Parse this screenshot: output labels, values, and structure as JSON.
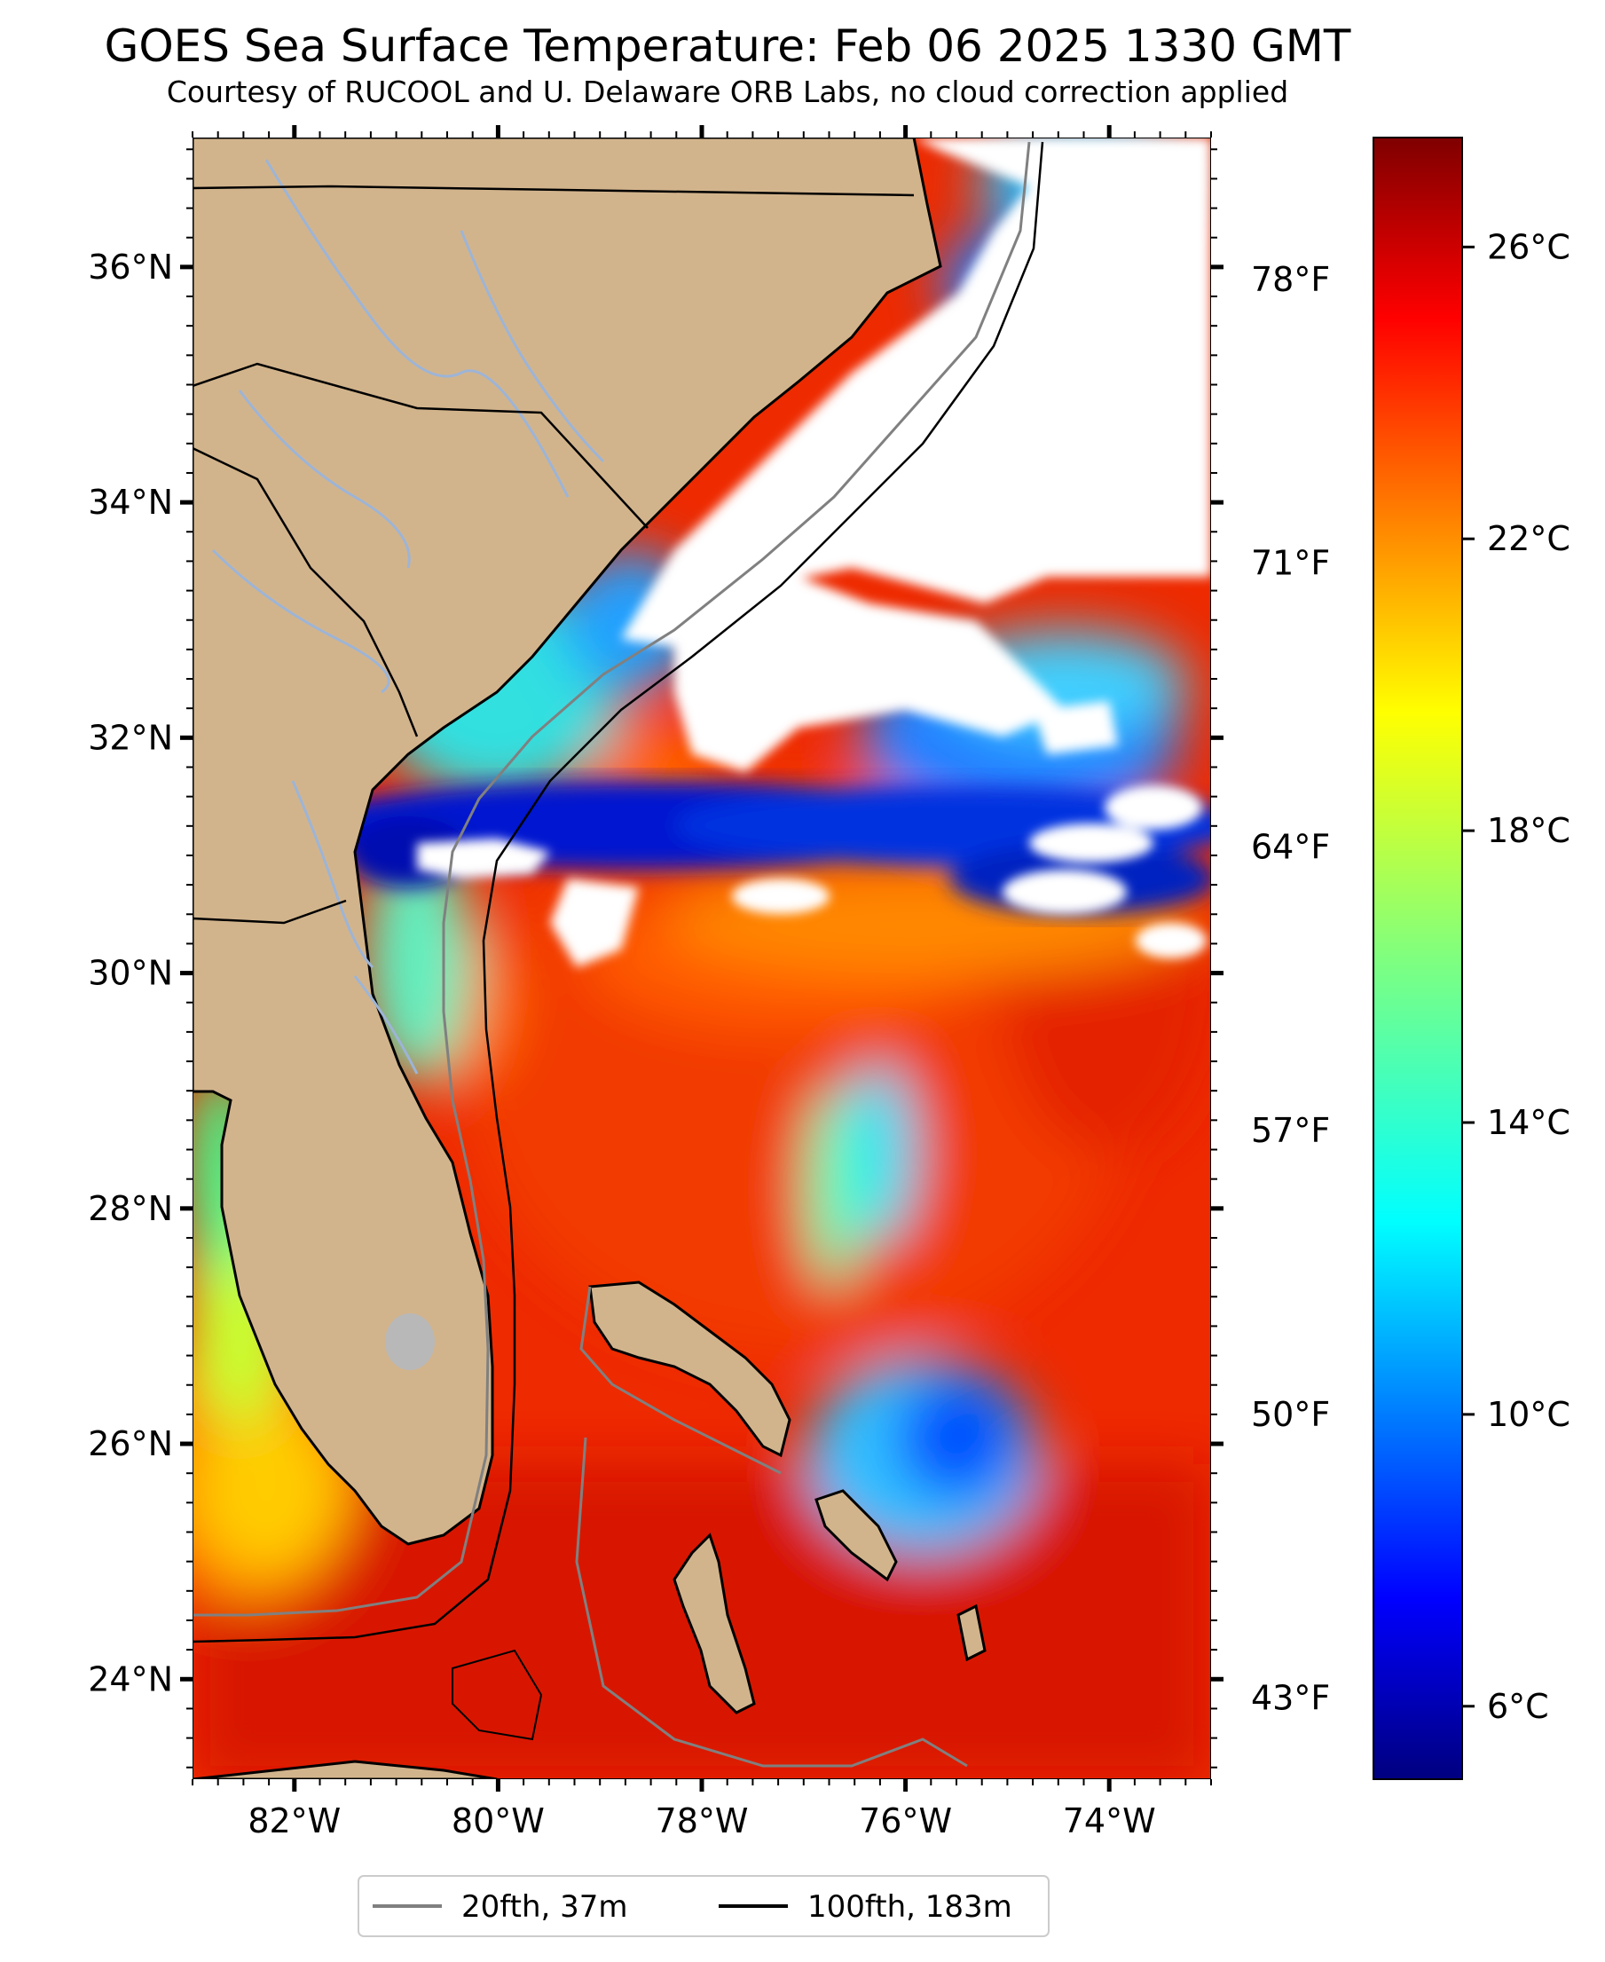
{
  "title": "GOES Sea Surface Temperature: Feb 06 2025 1330 GMT",
  "subtitle": "Courtesy of RUCOOL and U. Delaware ORB Labs, no cloud correction applied",
  "map": {
    "projection": "lon/lat",
    "extent": {
      "lon_min": -83.0,
      "lon_max": -73.0,
      "lat_min": 23.15,
      "lat_max": 37.1
    },
    "lat_ticks": [
      {
        "value": 36,
        "label": "36°N"
      },
      {
        "value": 34,
        "label": "34°N"
      },
      {
        "value": 32,
        "label": "32°N"
      },
      {
        "value": 30,
        "label": "30°N"
      },
      {
        "value": 28,
        "label": "28°N"
      },
      {
        "value": 26,
        "label": "26°N"
      },
      {
        "value": 24,
        "label": "24°N"
      }
    ],
    "lon_ticks": [
      {
        "value": -82,
        "label": "82°W"
      },
      {
        "value": -80,
        "label": "80°W"
      },
      {
        "value": -78,
        "label": "78°W"
      },
      {
        "value": -76,
        "label": "76°W"
      },
      {
        "value": -74,
        "label": "74°W"
      }
    ],
    "fahrenheit_ticks": [
      {
        "value": 78,
        "label": "78°F"
      },
      {
        "value": 71,
        "label": "71°F"
      },
      {
        "value": 64,
        "label": "64°F"
      },
      {
        "value": 57,
        "label": "57°F"
      },
      {
        "value": 50,
        "label": "50°F"
      },
      {
        "value": 43,
        "label": "43°F"
      }
    ],
    "colors": {
      "land": "#d2b48c",
      "cloud_or_no_data": "#ffffff",
      "coastline": "#000000",
      "borders": "#000000",
      "rivers": "#9db4d6"
    }
  },
  "colorbar": {
    "unit": "°C",
    "range_c": [
      5.0,
      27.5
    ],
    "colormap": "jet",
    "ticks": [
      {
        "value": 26,
        "label": "26°C"
      },
      {
        "value": 22,
        "label": "22°C"
      },
      {
        "value": 18,
        "label": "18°C"
      },
      {
        "value": 14,
        "label": "14°C"
      },
      {
        "value": 10,
        "label": "10°C"
      },
      {
        "value": 6,
        "label": "6°C"
      }
    ]
  },
  "legend": {
    "entries": [
      {
        "label": "20fth, 37m",
        "color": "#808080"
      },
      {
        "label": "100fth, 183m",
        "color": "#000000"
      }
    ]
  }
}
